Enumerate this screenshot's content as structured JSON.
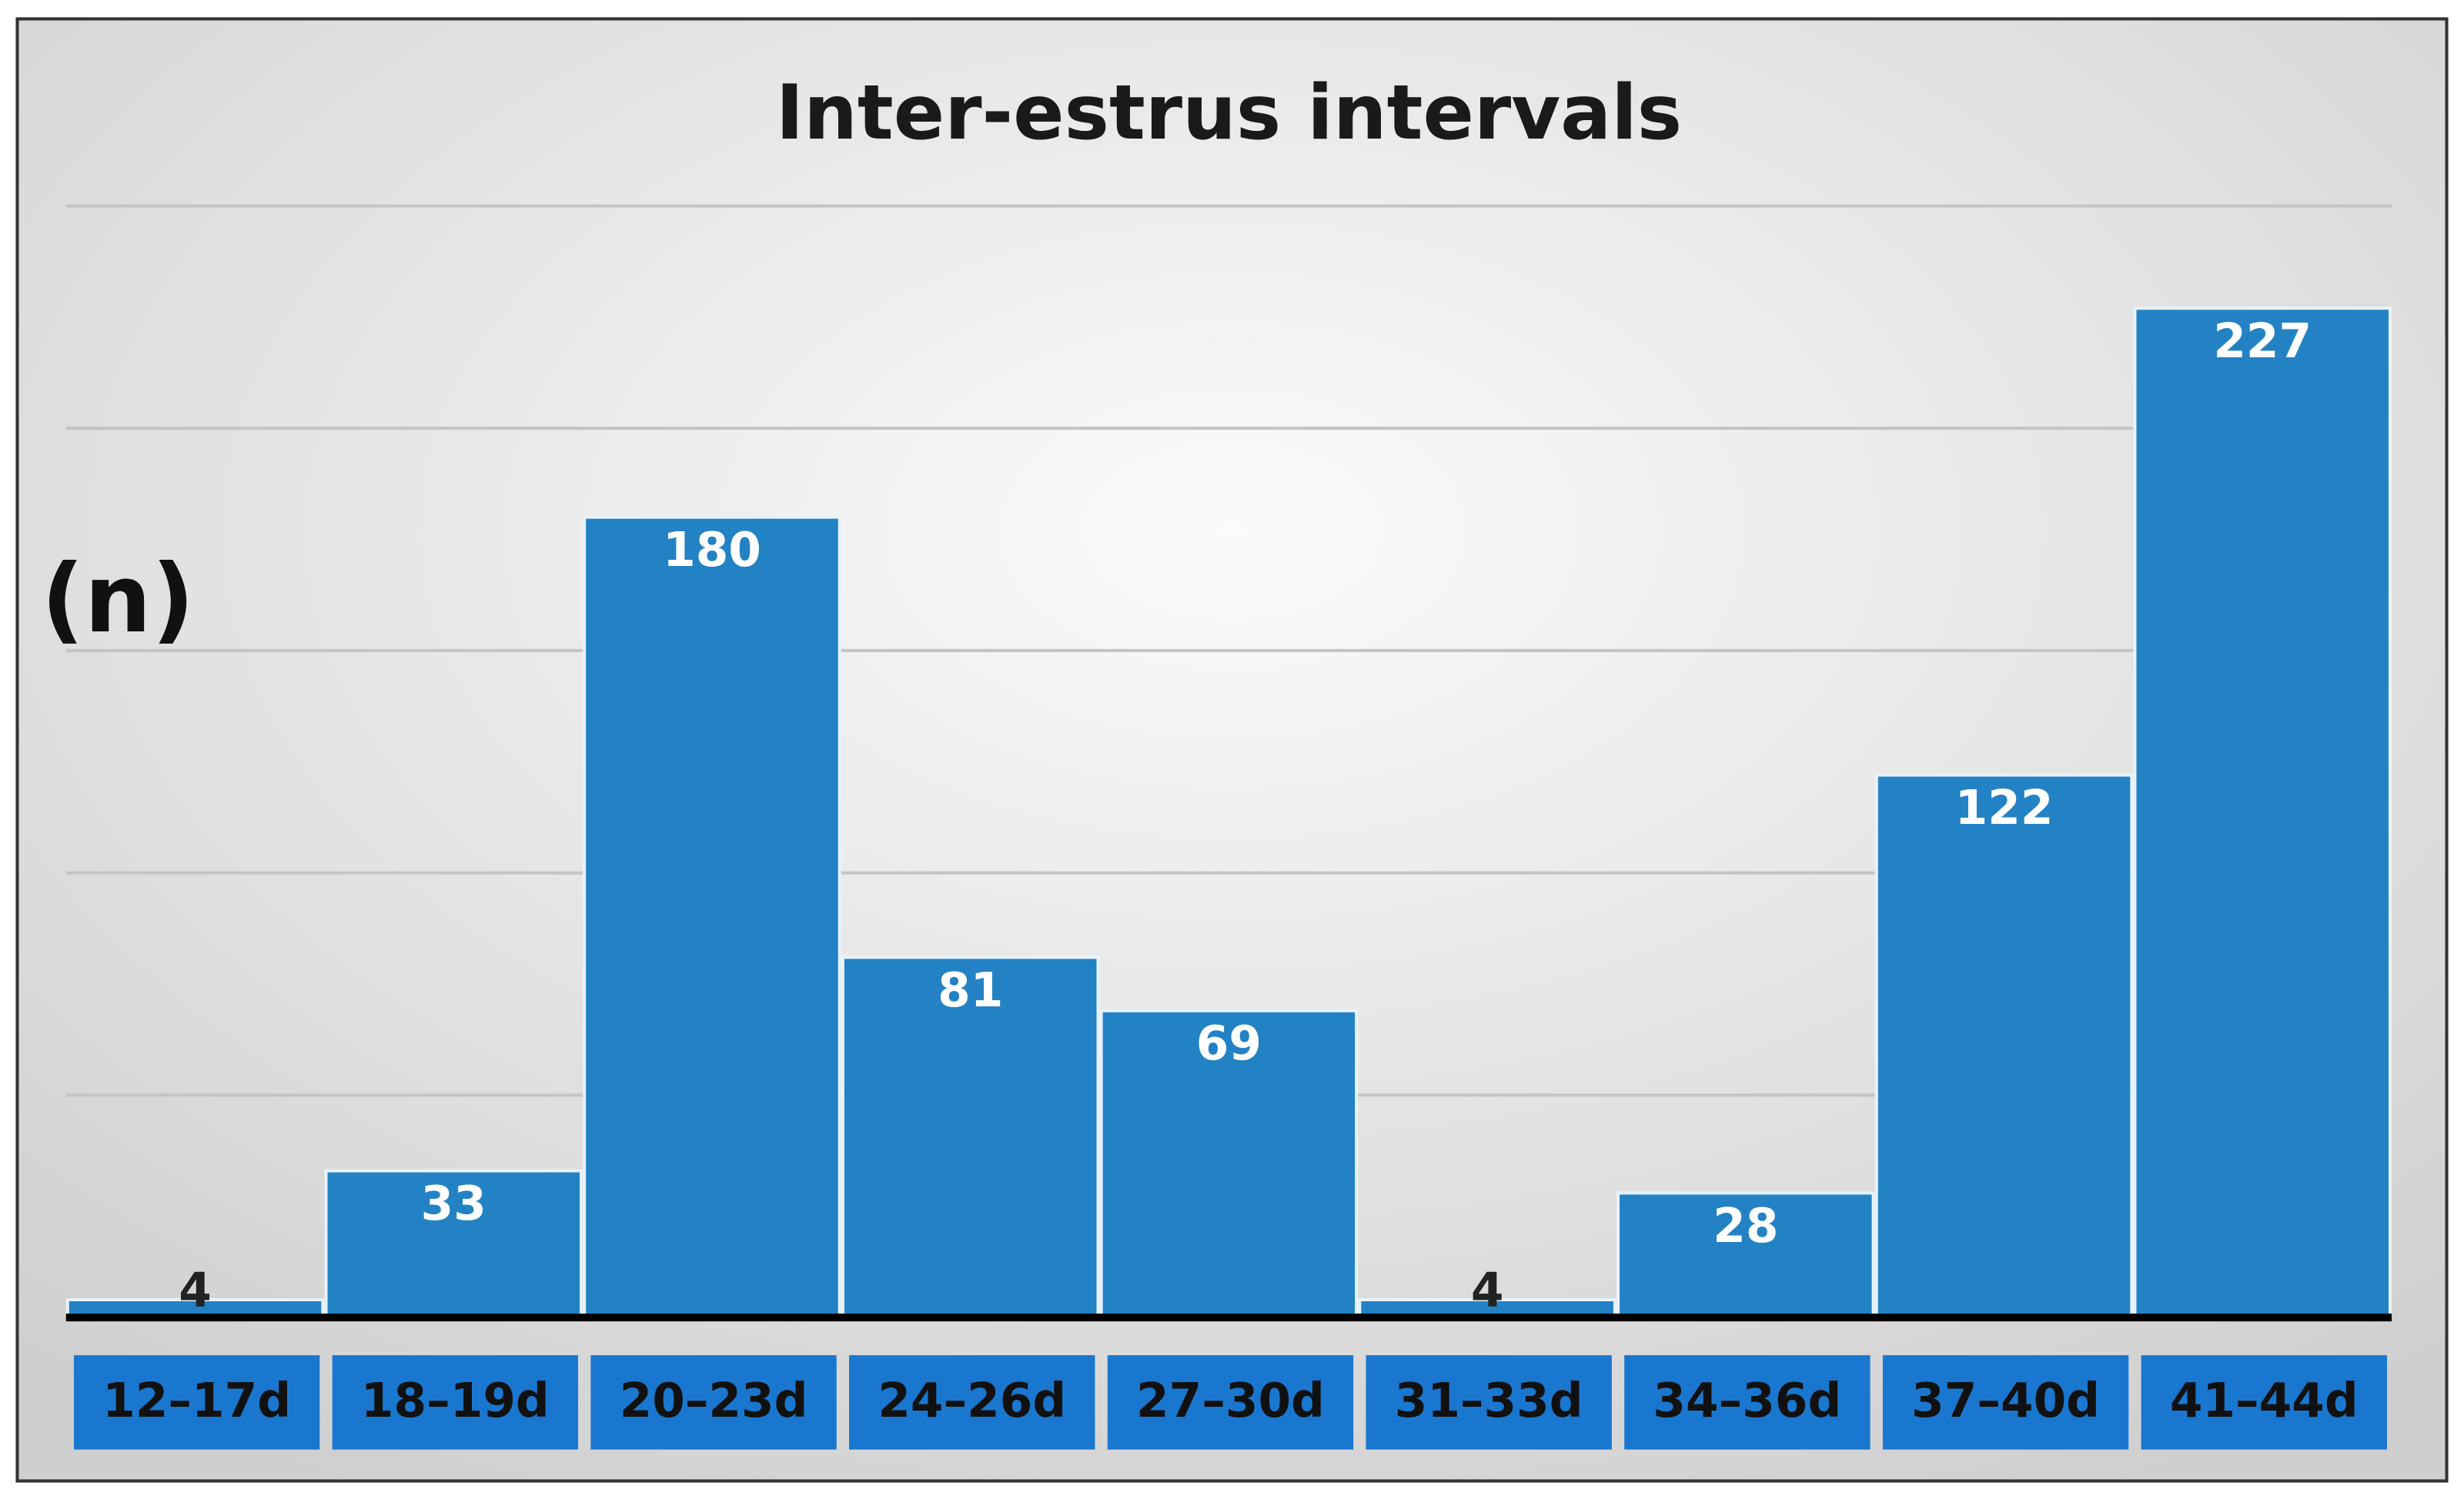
{
  "chart_data": {
    "type": "bar",
    "title": "Inter-estrus intervals",
    "y_label": "(n)",
    "categories": [
      "12–17d",
      "18–19d",
      "20–23d",
      "24–26d",
      "27–30d",
      "31–33d",
      "34–36d",
      "37–40d",
      "41–44d"
    ],
    "values": [
      4,
      33,
      180,
      81,
      69,
      4,
      28,
      122,
      227
    ],
    "color": "#2382c4",
    "label_box_color": "#1a77cf",
    "ylim": [
      0,
      250
    ],
    "yticks": [
      0,
      50,
      100,
      150,
      200,
      250
    ],
    "grid": true
  }
}
